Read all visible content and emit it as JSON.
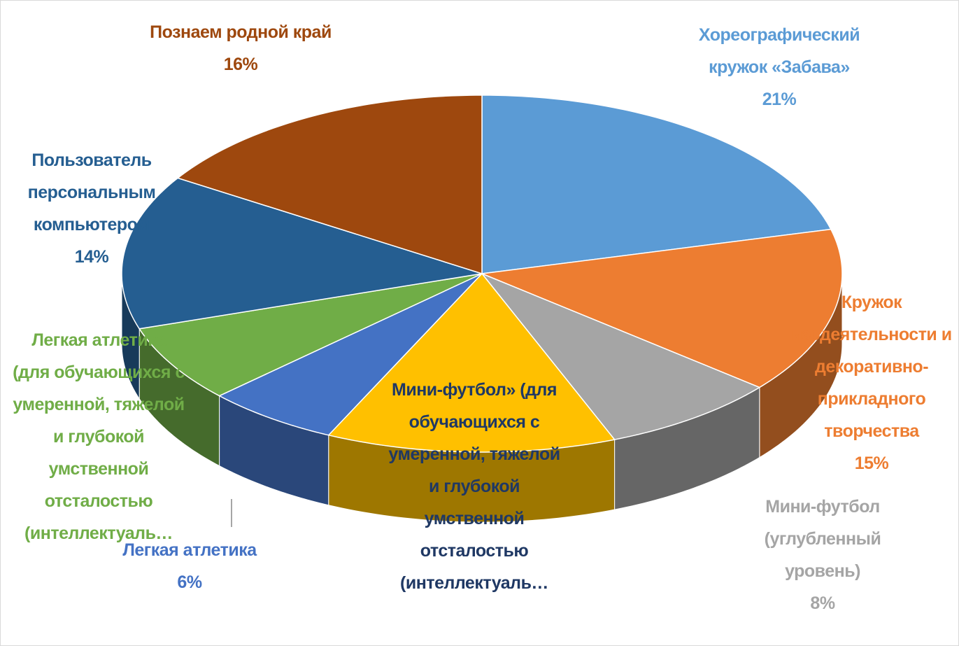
{
  "chart_data": {
    "type": "pie3d",
    "categories": [
      "Хореографический кружок «Забава»",
      "Кружок изодеятельности и декоративно-прикладного творчества",
      "Мини-футбол (углубленный уровень)",
      "Мини-футбол» (для обучающихся с умеренной, тяжелой и глубокой умственной отсталостью (интеллектуаль…",
      "Легкая атлетика",
      "Легкая атлетика (для обучающихся с умеренной, тяжелой и глубокой умственной отсталостью (интеллектуаль…",
      "Пользователь персональным компьютером",
      "Познаем родной край"
    ],
    "values": [
      21,
      15,
      8,
      13,
      6,
      7,
      14,
      16
    ],
    "value_labels": [
      "21%",
      "15%",
      "8%",
      null,
      "6%",
      null,
      "14%",
      "16%"
    ],
    "colors": [
      "#5b9bd5",
      "#ed7d31",
      "#a5a5a5",
      "#ffc000",
      "#4472c4",
      "#70ad47",
      "#255e91",
      "#9e480e"
    ],
    "label_colors": [
      "#5b9bd5",
      "#ed7d31",
      "#a5a5a5",
      "#1f3864",
      "#4472c4",
      "#70ad47",
      "#255e91",
      "#9e480e"
    ]
  }
}
